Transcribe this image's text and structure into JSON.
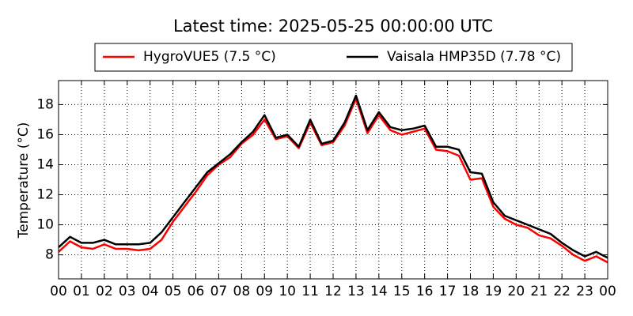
{
  "chart_data": {
    "type": "line",
    "title": "Latest time: 2025-05-25 00:00:00 UTC",
    "ylabel": "Temperature (°C)",
    "x": [
      0,
      0.5,
      1,
      1.5,
      2,
      2.5,
      3,
      3.5,
      4,
      4.5,
      5,
      5.5,
      6,
      6.5,
      7,
      7.5,
      8,
      8.5,
      9,
      9.5,
      10,
      10.5,
      11,
      11.5,
      12,
      12.5,
      13,
      13.5,
      14,
      14.5,
      15,
      15.5,
      16,
      16.5,
      17,
      17.5,
      18,
      18.5,
      19,
      19.5,
      20,
      20.5,
      21,
      21.5,
      22,
      22.5,
      23,
      23.5,
      24
    ],
    "series": [
      {
        "name": "HygroVUE5 (7.5 °C)",
        "color": "#ff0000",
        "values": [
          8.2,
          8.9,
          8.5,
          8.4,
          8.7,
          8.4,
          8.4,
          8.3,
          8.4,
          9.0,
          10.2,
          11.2,
          12.2,
          13.3,
          14.0,
          14.5,
          15.4,
          16.0,
          17.0,
          15.7,
          15.9,
          15.1,
          16.8,
          15.3,
          15.5,
          16.6,
          18.4,
          16.1,
          17.3,
          16.3,
          16.0,
          16.2,
          16.4,
          15.0,
          14.9,
          14.6,
          13.0,
          13.1,
          11.2,
          10.4,
          10.0,
          9.8,
          9.3,
          9.1,
          8.6,
          8.0,
          7.6,
          7.9,
          7.5
        ]
      },
      {
        "name": "Vaisala HMP35D (7.78 °C)",
        "color": "#000000",
        "values": [
          8.5,
          9.2,
          8.8,
          8.8,
          9.0,
          8.7,
          8.7,
          8.7,
          8.8,
          9.5,
          10.5,
          11.5,
          12.5,
          13.5,
          14.1,
          14.7,
          15.5,
          16.2,
          17.3,
          15.8,
          16.0,
          15.2,
          17.0,
          15.4,
          15.6,
          16.8,
          18.6,
          16.3,
          17.5,
          16.5,
          16.3,
          16.4,
          16.6,
          15.2,
          15.2,
          15.0,
          13.5,
          13.4,
          11.5,
          10.6,
          10.3,
          10.0,
          9.7,
          9.4,
          8.8,
          8.3,
          7.9,
          8.2,
          7.8
        ]
      }
    ],
    "xlim": [
      0,
      24
    ],
    "ylim": [
      6.4,
      19.6
    ],
    "yticks": [
      8,
      10,
      12,
      14,
      16,
      18
    ],
    "xticks": [
      {
        "value": 0,
        "label": "00"
      },
      {
        "value": 1,
        "label": "01"
      },
      {
        "value": 2,
        "label": "02"
      },
      {
        "value": 3,
        "label": "03"
      },
      {
        "value": 4,
        "label": "04"
      },
      {
        "value": 5,
        "label": "05"
      },
      {
        "value": 6,
        "label": "06"
      },
      {
        "value": 7,
        "label": "07"
      },
      {
        "value": 8,
        "label": "08"
      },
      {
        "value": 9,
        "label": "09"
      },
      {
        "value": 10,
        "label": "10"
      },
      {
        "value": 11,
        "label": "11"
      },
      {
        "value": 12,
        "label": "12"
      },
      {
        "value": 13,
        "label": "13"
      },
      {
        "value": 14,
        "label": "14"
      },
      {
        "value": 15,
        "label": "15"
      },
      {
        "value": 16,
        "label": "16"
      },
      {
        "value": 17,
        "label": "17"
      },
      {
        "value": 18,
        "label": "18"
      },
      {
        "value": 19,
        "label": "19"
      },
      {
        "value": 20,
        "label": "20"
      },
      {
        "value": 21,
        "label": "21"
      },
      {
        "value": 22,
        "label": "22"
      },
      {
        "value": 23,
        "label": "23"
      },
      {
        "value": 24,
        "label": "00"
      }
    ],
    "grid": true,
    "legend": "top"
  }
}
